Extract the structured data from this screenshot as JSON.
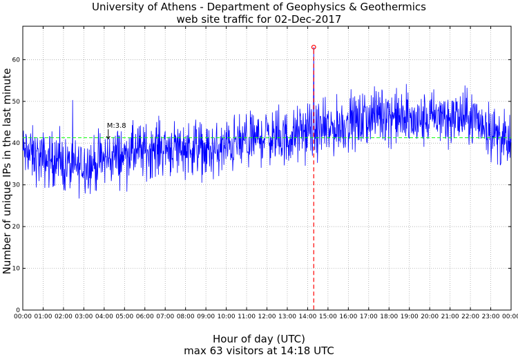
{
  "title_line1": "University of Athens - Department of Geophysics & Geothermics",
  "title_line2": "web site traffic for 02-Dec-2017",
  "xlabel": "Hour of day (UTC)",
  "ylabel": "Number of unique IPs in the last minute",
  "footer": "max 63 visitors at 14:18 UTC",
  "colors": {
    "series": "#0000ff",
    "mean_line": "#00ff00",
    "max_marker": "#ff0000",
    "grid": "#9a9a9a"
  },
  "chart_data": {
    "type": "line",
    "x_unit": "hour",
    "xlim": [
      0,
      24
    ],
    "ylim": [
      0,
      68
    ],
    "x_ticks": [
      "00:00",
      "01:00",
      "02:00",
      "03:00",
      "04:00",
      "05:00",
      "06:00",
      "07:00",
      "08:00",
      "09:00",
      "10:00",
      "11:00",
      "12:00",
      "13:00",
      "14:00",
      "15:00",
      "16:00",
      "17:00",
      "18:00",
      "19:00",
      "20:00",
      "21:00",
      "22:00",
      "23:00",
      "00:00"
    ],
    "y_ticks": [
      0,
      10,
      20,
      30,
      40,
      50,
      60
    ],
    "grid": true,
    "mean": {
      "value": 41.3
    },
    "annotation": {
      "label": "M:3.8",
      "x": 4.2,
      "y": 41
    },
    "max_point": {
      "time": "14:18",
      "value": 63
    },
    "series": [
      {
        "approx_hourly": [
          {
            "x": 0.0,
            "y": 38
          },
          {
            "x": 0.5,
            "y": 37
          },
          {
            "x": 1.0,
            "y": 36
          },
          {
            "x": 1.5,
            "y": 36
          },
          {
            "x": 2.0,
            "y": 35
          },
          {
            "x": 2.5,
            "y": 34
          },
          {
            "x": 3.0,
            "y": 35
          },
          {
            "x": 3.5,
            "y": 35
          },
          {
            "x": 4.0,
            "y": 36
          },
          {
            "x": 4.5,
            "y": 37
          },
          {
            "x": 5.0,
            "y": 37
          },
          {
            "x": 5.5,
            "y": 38
          },
          {
            "x": 6.0,
            "y": 38
          },
          {
            "x": 6.5,
            "y": 39
          },
          {
            "x": 7.0,
            "y": 39
          },
          {
            "x": 7.5,
            "y": 39
          },
          {
            "x": 8.0,
            "y": 39
          },
          {
            "x": 8.5,
            "y": 39
          },
          {
            "x": 9.0,
            "y": 38
          },
          {
            "x": 9.5,
            "y": 38
          },
          {
            "x": 10.0,
            "y": 39
          },
          {
            "x": 10.5,
            "y": 40
          },
          {
            "x": 11.0,
            "y": 40
          },
          {
            "x": 11.5,
            "y": 41
          },
          {
            "x": 12.0,
            "y": 42
          },
          {
            "x": 12.5,
            "y": 41
          },
          {
            "x": 13.0,
            "y": 41
          },
          {
            "x": 13.5,
            "y": 42
          },
          {
            "x": 14.0,
            "y": 43
          },
          {
            "x": 14.5,
            "y": 43
          },
          {
            "x": 15.0,
            "y": 43
          },
          {
            "x": 15.5,
            "y": 44
          },
          {
            "x": 16.0,
            "y": 45
          },
          {
            "x": 16.5,
            "y": 45
          },
          {
            "x": 17.0,
            "y": 46
          },
          {
            "x": 17.5,
            "y": 47
          },
          {
            "x": 18.0,
            "y": 47
          },
          {
            "x": 18.5,
            "y": 46
          },
          {
            "x": 19.0,
            "y": 45
          },
          {
            "x": 19.5,
            "y": 45
          },
          {
            "x": 20.0,
            "y": 46
          },
          {
            "x": 20.5,
            "y": 46
          },
          {
            "x": 21.0,
            "y": 46
          },
          {
            "x": 21.5,
            "y": 46
          },
          {
            "x": 22.0,
            "y": 46
          },
          {
            "x": 22.5,
            "y": 45
          },
          {
            "x": 23.0,
            "y": 43
          },
          {
            "x": 23.5,
            "y": 41
          },
          {
            "x": 24.0,
            "y": 39
          }
        ],
        "noise_amplitude": 5
      }
    ]
  }
}
